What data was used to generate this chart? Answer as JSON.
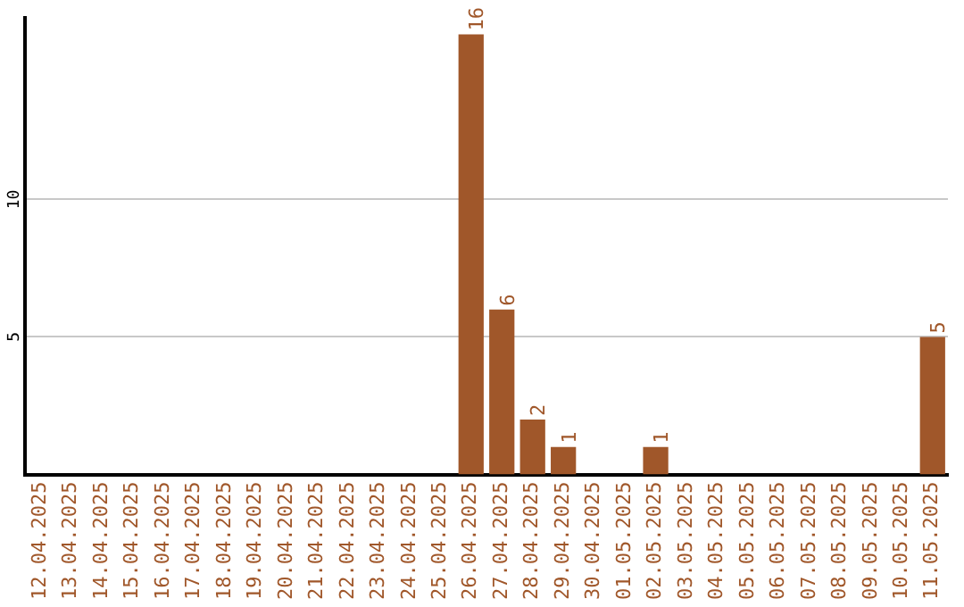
{
  "chart_data": {
    "type": "bar",
    "categories": [
      "12.04.2025",
      "13.04.2025",
      "14.04.2025",
      "15.04.2025",
      "16.04.2025",
      "17.04.2025",
      "18.04.2025",
      "19.04.2025",
      "20.04.2025",
      "21.04.2025",
      "22.04.2025",
      "23.04.2025",
      "24.04.2025",
      "25.04.2025",
      "26.04.2025",
      "27.04.2025",
      "28.04.2025",
      "29.04.2025",
      "30.04.2025",
      "01.05.2025",
      "02.05.2025",
      "03.05.2025",
      "04.05.2025",
      "05.05.2025",
      "06.05.2025",
      "07.05.2025",
      "08.05.2025",
      "09.05.2025",
      "10.05.2025",
      "11.05.2025"
    ],
    "values": [
      0,
      0,
      0,
      0,
      0,
      0,
      0,
      0,
      0,
      0,
      0,
      0,
      0,
      0,
      16,
      6,
      2,
      1,
      0,
      0,
      1,
      0,
      0,
      0,
      0,
      0,
      0,
      0,
      0,
      5
    ],
    "value_labels": [
      null,
      null,
      null,
      null,
      null,
      null,
      null,
      null,
      null,
      null,
      null,
      null,
      null,
      null,
      "16",
      "6",
      "2",
      "1",
      null,
      null,
      "1",
      null,
      null,
      null,
      null,
      null,
      null,
      null,
      null,
      "5"
    ],
    "color": "#a0572a",
    "ylim": [
      0,
      16.6
    ],
    "yticks": [
      5,
      10
    ],
    "grid": "y",
    "legend": false
  }
}
